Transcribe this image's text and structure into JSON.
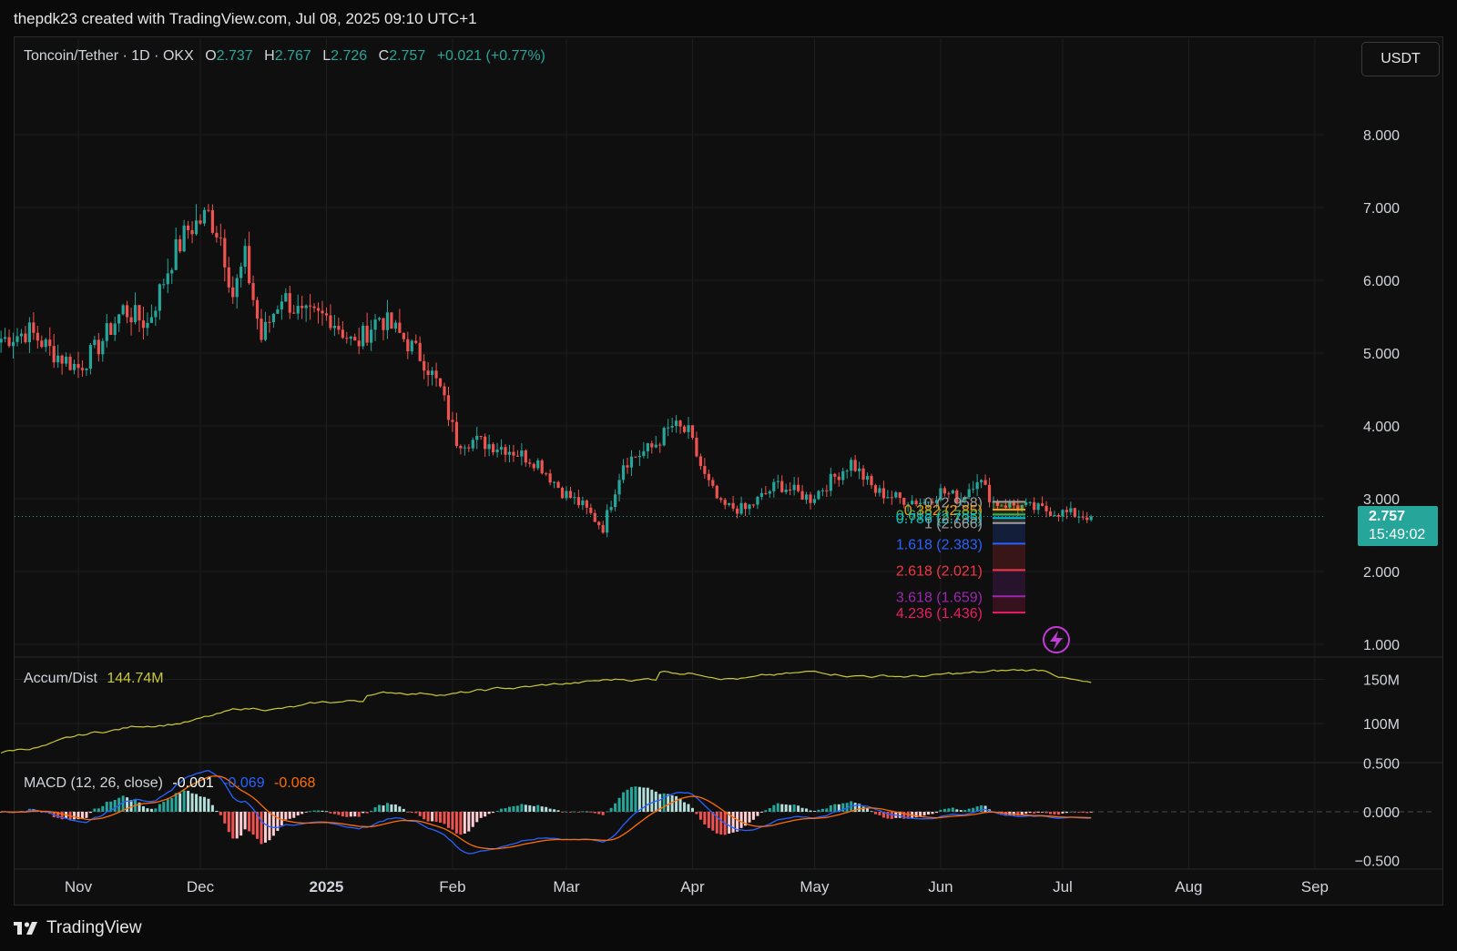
{
  "header": {
    "credit": "thepdk23 created with TradingView.com, Jul 08, 2025 09:10 UTC+1"
  },
  "legend": {
    "symbol": "Toncoin/Tether · 1D · OKX",
    "open_label": "O",
    "open": "2.737",
    "high_label": "H",
    "high": "2.767",
    "low_label": "L",
    "low": "2.726",
    "close_label": "C",
    "close": "2.757",
    "change": "+0.021 (+0.77%)"
  },
  "currency_button": "USDT",
  "last_price": {
    "price": "2.757",
    "countdown": "15:49:02"
  },
  "indicators": {
    "accum_dist": {
      "label": "Accum/Dist",
      "value": "144.74M"
    },
    "macd": {
      "label": "MACD (12, 26, close)",
      "hist": "-0.001",
      "macd": "-0.069",
      "signal": "-0.068"
    }
  },
  "footer": {
    "brand": "TradingView"
  },
  "colors": {
    "up": "#26a69a",
    "down": "#ef5350",
    "bg": "#0f0f0f",
    "grid": "#1e1e1e",
    "ad_line": "#c9c934",
    "macd_line": "#2962ff",
    "signal_line": "#ff6d00"
  },
  "chart_data": [
    {
      "type": "candlestick",
      "title": "Toncoin/Tether · 1D · OKX",
      "x_axis": {
        "labels": [
          "Nov",
          "Dec",
          "2025",
          "Feb",
          "Mar",
          "Apr",
          "May",
          "Jun",
          "Jul",
          "Aug",
          "Sep"
        ]
      },
      "y_axis": {
        "labels": [
          "1.000",
          "2.000",
          "3.000",
          "4.000",
          "5.000",
          "6.000",
          "7.000",
          "8.000"
        ],
        "range": [
          1.0,
          8.0
        ]
      },
      "price_path": {
        "dates": [
          "2024-10-14",
          "2024-10-20",
          "2024-10-26",
          "2024-11-01",
          "2024-11-06",
          "2024-11-12",
          "2024-11-18",
          "2024-11-24",
          "2024-11-28",
          "2024-12-03",
          "2024-12-06",
          "2024-12-09",
          "2024-12-12",
          "2024-12-16",
          "2024-12-21",
          "2024-12-26",
          "2025-01-02",
          "2025-01-08",
          "2025-01-14",
          "2025-01-20",
          "2025-01-25",
          "2025-01-29",
          "2025-02-02",
          "2025-02-06",
          "2025-02-14",
          "2025-02-22",
          "2025-02-28",
          "2025-03-05",
          "2025-03-10",
          "2025-03-15",
          "2025-03-22",
          "2025-03-27",
          "2025-03-31",
          "2025-04-04",
          "2025-04-08",
          "2025-04-14",
          "2025-04-22",
          "2025-04-30",
          "2025-05-10",
          "2025-05-16",
          "2025-05-22",
          "2025-05-28",
          "2025-06-01",
          "2025-06-06",
          "2025-06-10",
          "2025-06-14",
          "2025-06-20",
          "2025-06-26",
          "2025-07-02",
          "2025-07-08"
        ],
        "close": [
          5.2,
          5.3,
          5.0,
          4.8,
          5.1,
          5.6,
          5.4,
          6.3,
          6.7,
          6.9,
          6.6,
          5.8,
          6.3,
          5.2,
          5.8,
          5.5,
          5.5,
          5.1,
          5.5,
          5.2,
          4.9,
          4.5,
          3.8,
          3.8,
          3.7,
          3.5,
          3.1,
          2.9,
          2.6,
          3.5,
          3.7,
          4.0,
          3.9,
          3.3,
          2.9,
          2.85,
          3.2,
          3.0,
          3.5,
          3.1,
          3.0,
          2.95,
          3.1,
          3.0,
          3.3,
          2.95,
          2.9,
          2.85,
          2.8,
          2.757
        ]
      },
      "fibonacci": [
        {
          "label": "0 (2.958)",
          "price": 2.958,
          "color": "#9e9e9e"
        },
        {
          "label": "0.382 (2.85)",
          "price": 2.85,
          "color": "#f59e0b"
        },
        {
          "label": "0.618 (2.783)",
          "price": 2.783,
          "color": "#4caf50"
        },
        {
          "label": "0.786 (2.735)",
          "price": 2.735,
          "color": "#00bcd4"
        },
        {
          "label": "1 (2.666)",
          "price": 2.666,
          "color": "#9e9e9e"
        },
        {
          "label": "1.618 (2.383)",
          "price": 2.383,
          "color": "#2962ff"
        },
        {
          "label": "2.618 (2.021)",
          "price": 2.021,
          "color": "#f23645"
        },
        {
          "label": "3.618 (1.659)",
          "price": 1.659,
          "color": "#9c27b0"
        },
        {
          "label": "4.236 (1.436)",
          "price": 1.436,
          "color": "#e91e63"
        }
      ]
    },
    {
      "type": "line",
      "title": "Accum/Dist",
      "y_axis": {
        "labels": [
          "100M",
          "150M"
        ]
      },
      "series": [
        {
          "name": "Accum/Dist",
          "last": "144.74M"
        }
      ]
    },
    {
      "type": "bar",
      "title": "MACD (12, 26, close)",
      "y_axis": {
        "labels": [
          "0.500",
          "0.000",
          "−0.500"
        ]
      },
      "series": [
        {
          "name": "Histogram",
          "last": "-0.001"
        },
        {
          "name": "MACD",
          "last": "-0.069"
        },
        {
          "name": "Signal",
          "last": "-0.068"
        }
      ]
    }
  ]
}
